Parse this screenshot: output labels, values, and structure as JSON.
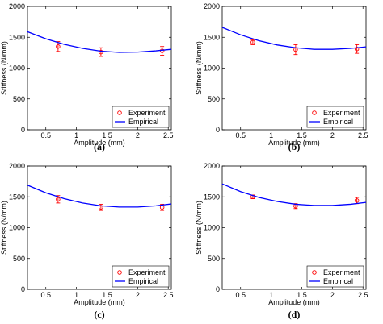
{
  "chart_data": [
    {
      "type": "scatter",
      "caption": "(a)",
      "xlabel": "Amplitude (mm)",
      "ylabel": "Stiffness (N/mm)",
      "xlim": [
        0.2,
        2.55
      ],
      "ylim": [
        0,
        2000
      ],
      "xticks": [
        "0.5",
        "1",
        "1.5",
        "2",
        "2.5"
      ],
      "yticks": [
        "0",
        "500",
        "1000",
        "1500",
        "2000"
      ],
      "legend": [
        "Experiment",
        "Empirical"
      ],
      "legend_position": "bottom-right",
      "series": [
        {
          "kind": "points",
          "x": [
            0.7,
            1.4,
            2.4
          ],
          "y": [
            1350,
            1260,
            1280
          ],
          "err": [
            80,
            70,
            70
          ]
        },
        {
          "kind": "line",
          "x": [
            0.2,
            0.5,
            0.8,
            1.1,
            1.4,
            1.7,
            2.0,
            2.3,
            2.55
          ],
          "y": [
            1590,
            1475,
            1385,
            1320,
            1275,
            1255,
            1260,
            1280,
            1305
          ]
        }
      ]
    },
    {
      "type": "scatter",
      "caption": "(b)",
      "xlabel": "Amplitude (mm)",
      "ylabel": "Stiffness (N/mm)",
      "xlim": [
        0.2,
        2.55
      ],
      "ylim": [
        0,
        2000
      ],
      "xticks": [
        "0.5",
        "1",
        "1.5",
        "2",
        "2.5"
      ],
      "yticks": [
        "0",
        "500",
        "1000",
        "1500",
        "2000"
      ],
      "legend": [
        "Experiment",
        "Empirical"
      ],
      "legend_position": "bottom-right",
      "series": [
        {
          "kind": "points",
          "x": [
            0.7,
            1.4,
            2.4
          ],
          "y": [
            1420,
            1300,
            1310
          ],
          "err": [
            40,
            80,
            70
          ]
        },
        {
          "kind": "line",
          "x": [
            0.2,
            0.5,
            0.8,
            1.1,
            1.4,
            1.7,
            2.0,
            2.3,
            2.55
          ],
          "y": [
            1660,
            1540,
            1445,
            1375,
            1330,
            1305,
            1305,
            1320,
            1345
          ]
        }
      ]
    },
    {
      "type": "scatter",
      "caption": "(c)",
      "xlabel": "Amplitude (mm)",
      "ylabel": "Stiffness (N/mm)",
      "xlim": [
        0.2,
        2.55
      ],
      "ylim": [
        0,
        2000
      ],
      "xticks": [
        "0.5",
        "1",
        "1.5",
        "2",
        "2.5"
      ],
      "yticks": [
        "0",
        "500",
        "1000",
        "1500",
        "2000"
      ],
      "legend": [
        "Experiment",
        "Empirical"
      ],
      "legend_position": "bottom-right",
      "series": [
        {
          "kind": "points",
          "x": [
            0.7,
            1.4,
            2.4
          ],
          "y": [
            1460,
            1330,
            1330
          ],
          "err": [
            60,
            50,
            50
          ]
        },
        {
          "kind": "line",
          "x": [
            0.2,
            0.5,
            0.8,
            1.1,
            1.4,
            1.7,
            2.0,
            2.3,
            2.55
          ],
          "y": [
            1690,
            1565,
            1470,
            1400,
            1355,
            1335,
            1335,
            1355,
            1385
          ]
        }
      ]
    },
    {
      "type": "scatter",
      "caption": "(d)",
      "xlabel": "Amplitude (mm)",
      "ylabel": "Stiffness (N/mm)",
      "xlim": [
        0.2,
        2.55
      ],
      "ylim": [
        0,
        2000
      ],
      "xticks": [
        "0.5",
        "1",
        "1.5",
        "2",
        "2.5"
      ],
      "yticks": [
        "0",
        "500",
        "1000",
        "1500",
        "2000"
      ],
      "legend": [
        "Experiment",
        "Empirical"
      ],
      "legend_position": "bottom-right",
      "series": [
        {
          "kind": "points",
          "x": [
            0.7,
            1.4,
            2.4
          ],
          "y": [
            1500,
            1350,
            1440
          ],
          "err": [
            30,
            40,
            50
          ]
        },
        {
          "kind": "line",
          "x": [
            0.2,
            0.5,
            0.8,
            1.1,
            1.4,
            1.7,
            2.0,
            2.3,
            2.55
          ],
          "y": [
            1710,
            1585,
            1490,
            1425,
            1380,
            1360,
            1360,
            1380,
            1410
          ]
        }
      ]
    }
  ],
  "colors": {
    "experiment": "#ff0000",
    "empirical": "#0000ff",
    "axis": "#000000"
  }
}
